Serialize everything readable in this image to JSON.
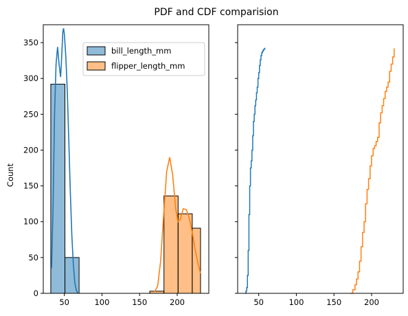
{
  "chart_data": [
    {
      "type": "histogram",
      "title": "PDF and CDF comparision",
      "ylabel": "Count",
      "xlim": [
        22,
        242
      ],
      "ylim": [
        0,
        375
      ],
      "xticks": [
        50,
        100,
        150,
        200
      ],
      "yticks": [
        0,
        50,
        100,
        150,
        200,
        250,
        300,
        350
      ],
      "legend": {
        "placement": "top-right"
      },
      "colors": {
        "bill_length_mm": "#1f77b4",
        "flipper_length_mm": "#ff7f0e"
      },
      "bin_edges": [
        32,
        50.8,
        69.6,
        88.4,
        107.2,
        126,
        144.8,
        163.6,
        182.4,
        201.2,
        220,
        231
      ],
      "series": [
        {
          "name": "bill_length_mm",
          "counts": [
            292,
            50,
            0,
            0,
            0,
            0,
            0,
            0,
            0,
            0,
            0
          ],
          "kde": [
            [
              33,
              35
            ],
            [
              35,
              120
            ],
            [
              37,
              250
            ],
            [
              39,
              320
            ],
            [
              41,
              344
            ],
            [
              43,
              320
            ],
            [
              45,
              302
            ],
            [
              46,
              320
            ],
            [
              48,
              365
            ],
            [
              49,
              370
            ],
            [
              50,
              362
            ],
            [
              52,
              330
            ],
            [
              54,
              280
            ],
            [
              56,
              210
            ],
            [
              58,
              140
            ],
            [
              60,
              80
            ],
            [
              62,
              40
            ],
            [
              64,
              14
            ],
            [
              66,
              4
            ],
            [
              68,
              0
            ]
          ]
        },
        {
          "name": "flipper_length_mm",
          "counts": [
            0,
            0,
            0,
            0,
            0,
            0,
            0,
            3,
            136,
            111,
            91
          ],
          "kde": [
            [
              170,
              2
            ],
            [
              174,
              10
            ],
            [
              178,
              45
            ],
            [
              182,
              110
            ],
            [
              186,
              170
            ],
            [
              190,
              190
            ],
            [
              194,
              165
            ],
            [
              198,
              118
            ],
            [
              201,
              100
            ],
            [
              204,
              103
            ],
            [
              208,
              118
            ],
            [
              212,
              117
            ],
            [
              216,
              105
            ],
            [
              220,
              85
            ],
            [
              224,
              60
            ],
            [
              228,
              40
            ],
            [
              231,
              28
            ]
          ]
        }
      ]
    },
    {
      "type": "line",
      "xlim": [
        22,
        242
      ],
      "ylim": [
        0,
        375
      ],
      "xticks": [
        50,
        100,
        150,
        200
      ],
      "yticks": [
        0,
        50,
        100,
        150,
        200,
        250,
        300,
        350
      ],
      "series": [
        {
          "name": "bill_length_mm",
          "points": [
            [
              32,
              0
            ],
            [
              33,
              3
            ],
            [
              34,
              8
            ],
            [
              35,
              25
            ],
            [
              36,
              60
            ],
            [
              37,
              110
            ],
            [
              38,
              150
            ],
            [
              39,
              175
            ],
            [
              40,
              185
            ],
            [
              41,
              200
            ],
            [
              42,
              220
            ],
            [
              43,
              240
            ],
            [
              44,
              250
            ],
            [
              45,
              262
            ],
            [
              46,
              270
            ],
            [
              47,
              280
            ],
            [
              48,
              288
            ],
            [
              49,
              300
            ],
            [
              50,
              308
            ],
            [
              51,
              318
            ],
            [
              52,
              326
            ],
            [
              53,
              332
            ],
            [
              54,
              336
            ],
            [
              55,
              338
            ],
            [
              56,
              340
            ],
            [
              57,
              341
            ],
            [
              58,
              342
            ],
            [
              59,
              342
            ]
          ]
        },
        {
          "name": "flipper_length_mm",
          "points": [
            [
              172,
              0
            ],
            [
              175,
              5
            ],
            [
              178,
              12
            ],
            [
              180,
              20
            ],
            [
              182,
              30
            ],
            [
              184,
              45
            ],
            [
              186,
              65
            ],
            [
              188,
              85
            ],
            [
              190,
              100
            ],
            [
              192,
              125
            ],
            [
              194,
              145
            ],
            [
              196,
              160
            ],
            [
              198,
              178
            ],
            [
              200,
              192
            ],
            [
              202,
              202
            ],
            [
              204,
              206
            ],
            [
              206,
              212
            ],
            [
              208,
              218
            ],
            [
              210,
              238
            ],
            [
              212,
              252
            ],
            [
              214,
              262
            ],
            [
              216,
              272
            ],
            [
              218,
              282
            ],
            [
              220,
              288
            ],
            [
              222,
              295
            ],
            [
              224,
              310
            ],
            [
              226,
              320
            ],
            [
              228,
              330
            ],
            [
              230,
              342
            ]
          ]
        }
      ]
    }
  ]
}
